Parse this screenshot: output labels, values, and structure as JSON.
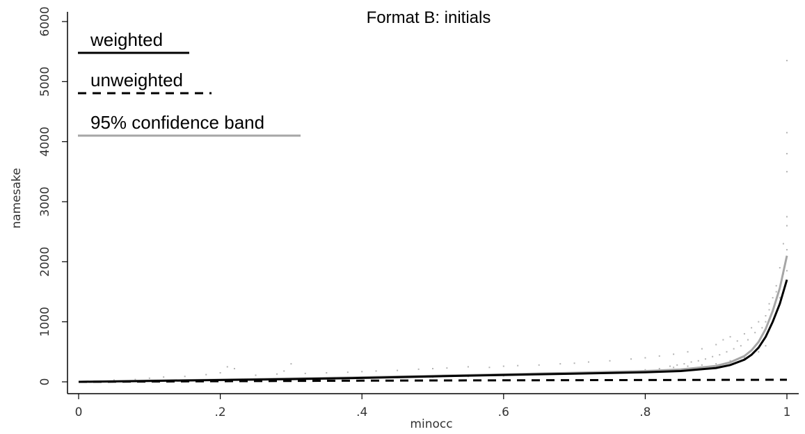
{
  "chart_data": {
    "type": "scatter",
    "title": "Format B: initials",
    "xlabel": "minocc",
    "ylabel": "namesake",
    "xlim": [
      0,
      1
    ],
    "ylim": [
      0,
      6000
    ],
    "xticks": [
      0,
      0.2,
      0.4,
      0.6,
      0.8,
      1
    ],
    "xtick_labels": [
      "0",
      ".2",
      ".4",
      ".6",
      ".8",
      "1"
    ],
    "yticks": [
      0,
      1000,
      2000,
      3000,
      4000,
      5000,
      6000
    ],
    "ytick_labels": [
      "0",
      "1000",
      "2000",
      "3000",
      "4000",
      "5000",
      "6000"
    ],
    "grid": false,
    "legend_position": "top-left",
    "legend": [
      {
        "label": "weighted",
        "style": "solid",
        "color": "#000000"
      },
      {
        "label": "unweighted",
        "style": "dashed",
        "color": "#000000"
      },
      {
        "label": "95% confidence band",
        "style": "solid",
        "color": "#a6a6a6"
      }
    ],
    "series": [
      {
        "name": "weighted",
        "style": "solid",
        "color": "#000000",
        "x": [
          0,
          0.1,
          0.2,
          0.3,
          0.4,
          0.5,
          0.6,
          0.7,
          0.8,
          0.85,
          0.9,
          0.92,
          0.94,
          0.95,
          0.96,
          0.97,
          0.98,
          0.99,
          1.0
        ],
        "y": [
          0,
          15,
          30,
          45,
          65,
          90,
          115,
          135,
          160,
          180,
          230,
          280,
          370,
          450,
          570,
          750,
          1000,
          1300,
          1700
        ]
      },
      {
        "name": "unweighted",
        "style": "dashed",
        "color": "#000000",
        "x": [
          0,
          0.2,
          0.4,
          0.6,
          0.8,
          1.0
        ],
        "y": [
          0,
          10,
          20,
          25,
          30,
          35
        ]
      },
      {
        "name": "95% confidence band",
        "style": "solid",
        "color": "#a6a6a6",
        "x": [
          0,
          0.1,
          0.2,
          0.3,
          0.4,
          0.5,
          0.6,
          0.7,
          0.8,
          0.85,
          0.9,
          0.92,
          0.94,
          0.95,
          0.96,
          0.97,
          0.98,
          0.99,
          1.0
        ],
        "y": [
          0,
          20,
          35,
          55,
          75,
          100,
          125,
          150,
          180,
          205,
          265,
          325,
          430,
          525,
          665,
          880,
          1180,
          1560,
          2100
        ]
      }
    ],
    "scatter_points": {
      "name": "observations",
      "color": "#b3b3b3",
      "x": [
        0.05,
        0.08,
        0.1,
        0.12,
        0.15,
        0.18,
        0.2,
        0.21,
        0.22,
        0.25,
        0.28,
        0.29,
        0.3,
        0.32,
        0.35,
        0.38,
        0.4,
        0.42,
        0.45,
        0.48,
        0.5,
        0.52,
        0.55,
        0.58,
        0.6,
        0.62,
        0.65,
        0.68,
        0.7,
        0.72,
        0.75,
        0.78,
        0.8,
        0.82,
        0.84,
        0.86,
        0.88,
        0.9,
        0.91,
        0.92,
        0.93,
        0.94,
        0.95,
        0.96,
        0.97,
        0.975,
        0.98,
        0.985,
        0.99,
        0.995,
        1.0,
        1.0,
        1.0,
        1.0,
        1.0,
        1.0,
        1.0,
        1.0,
        0.97,
        0.96,
        0.95,
        0.94,
        0.93,
        0.92,
        0.9,
        0.88,
        0.86,
        0.84,
        0.82,
        0.8,
        0.78,
        0.75,
        0.72,
        0.7,
        0.65,
        0.6,
        0.55,
        0.5,
        0.45,
        0.4,
        0.35,
        0.3,
        0.25,
        0.2,
        0.15,
        0.1,
        0.99,
        0.98,
        0.97,
        0.995,
        0.985,
        0.975,
        0.965,
        0.955,
        0.945,
        0.935,
        0.925,
        0.915,
        0.905,
        0.895,
        0.885,
        0.875,
        0.865,
        0.855,
        0.845,
        0.835
      ],
      "y": [
        30,
        40,
        60,
        80,
        90,
        120,
        150,
        250,
        220,
        110,
        130,
        180,
        300,
        140,
        150,
        160,
        170,
        180,
        190,
        210,
        220,
        230,
        250,
        240,
        260,
        270,
        280,
        300,
        310,
        330,
        350,
        380,
        400,
        430,
        460,
        500,
        550,
        620,
        700,
        750,
        680,
        800,
        900,
        1000,
        1100,
        1200,
        1400,
        1600,
        1900,
        2300,
        5350,
        4150,
        3800,
        3500,
        2750,
        2600,
        2200,
        1850,
        600,
        500,
        450,
        400,
        380,
        350,
        300,
        280,
        260,
        240,
        220,
        200,
        180,
        160,
        150,
        140,
        120,
        100,
        90,
        80,
        70,
        60,
        50,
        40,
        35,
        30,
        25,
        20,
        1400,
        1200,
        1000,
        1800,
        1500,
        1300,
        900,
        820,
        700,
        600,
        550,
        500,
        450,
        420,
        380,
        350,
        330,
        300,
        280,
        260
      ]
    }
  }
}
